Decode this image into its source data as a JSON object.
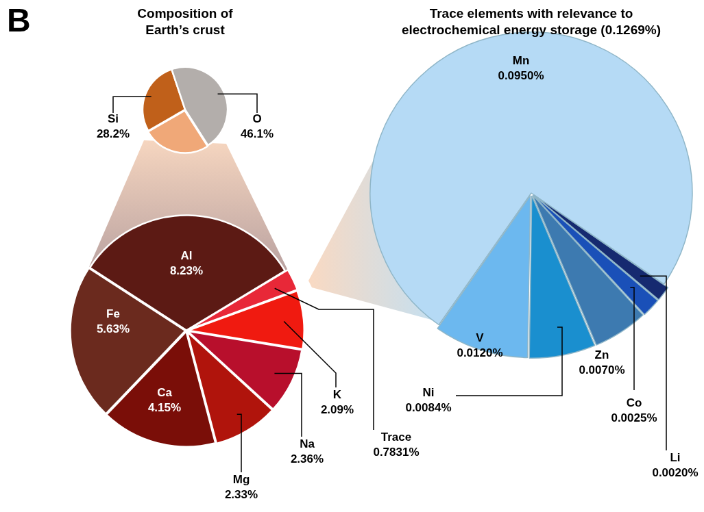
{
  "chart_data": [
    {
      "type": "pie",
      "title": "Composition of Earth’s crust",
      "categories": [
        "Si",
        "O",
        null
      ],
      "values": [
        28.2,
        46.1,
        25.7
      ],
      "colors": [
        "#c0601a",
        "#b3aeab",
        "#f0a878"
      ],
      "value_labels": [
        "28.2%",
        "46.1%",
        null
      ],
      "legend": false,
      "annotations": [
        "B"
      ]
    },
    {
      "type": "pie",
      "categories": [
        "Al",
        "Trace",
        "K",
        "Na",
        "Mg",
        "Ca",
        "Fe"
      ],
      "values": [
        8.23,
        0.7831,
        2.09,
        2.36,
        2.33,
        4.15,
        5.63
      ],
      "colors": [
        "#5c1a14",
        "#e82838",
        "#f01a10",
        "#b80f2c",
        "#b0140c",
        "#7a0e08",
        "#6b2a1e"
      ],
      "value_labels": [
        "8.23%",
        "0.7831%",
        "2.09%",
        "2.36%",
        "2.33%",
        "4.15%",
        "5.63%"
      ],
      "legend": false
    },
    {
      "type": "pie",
      "title": "Trace elements with relevance to electrochemical energy storage (0.1269%)",
      "categories": [
        "Mn",
        "Li",
        "Co",
        "Zn",
        "Ni",
        "V"
      ],
      "values": [
        0.095,
        0.002,
        0.0025,
        0.007,
        0.0084,
        0.012
      ],
      "colors": [
        "#b5daf5",
        "#162a70",
        "#1a50b8",
        "#3d7ab0",
        "#1a8fcf",
        "#6cb8ef"
      ],
      "value_labels": [
        "0.0950%",
        "0.0020%",
        "0.0025%",
        "0.0070%",
        "0.0084%",
        "0.0120%"
      ],
      "legend": false
    }
  ]
}
